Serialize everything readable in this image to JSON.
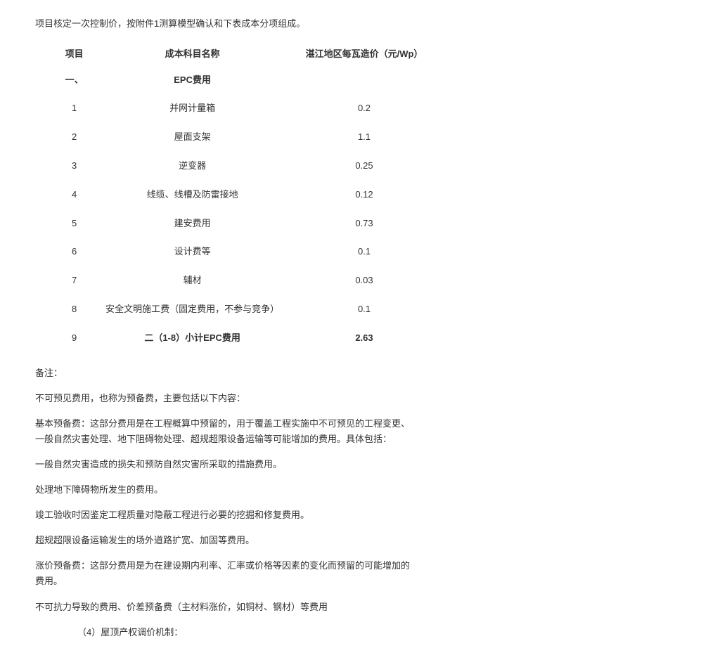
{
  "intro": "项目核定一次控制价，按附件1测算模型确认和下表成本分项组成。",
  "table": {
    "headers": {
      "item": "项目",
      "name": "成本科目名称",
      "price": "湛江地区每瓦造价（元/Wp）"
    },
    "section_header": {
      "item": "一、",
      "name": "EPC费用",
      "price": ""
    },
    "rows": [
      {
        "item": "1",
        "name": "并网计量箱",
        "price": "0.2"
      },
      {
        "item": "2",
        "name": "屋面支架",
        "price": "1.1"
      },
      {
        "item": "3",
        "name": "逆变器",
        "price": "0.25"
      },
      {
        "item": "4",
        "name": "线缆、线槽及防雷接地",
        "price": "0.12"
      },
      {
        "item": "5",
        "name": "建安费用",
        "price": "0.73"
      },
      {
        "item": "6",
        "name": "设计费等",
        "price": "0.1"
      },
      {
        "item": "7",
        "name": "辅材",
        "price": "0.03"
      },
      {
        "item": "8",
        "name": "安全文明施工费（固定费用，不参与竞争）",
        "price": "0.1"
      }
    ],
    "subtotal": {
      "item": "9",
      "name": "二（1-8）小计EPC费用",
      "price": "2.63"
    }
  },
  "notes": {
    "p1": "备注：",
    "p2": "不可预见费用，也称为预备费，主要包括以下内容：",
    "p3": "基本预备费：这部分费用是在工程概算中预留的，用于覆盖工程实施中不可预见的工程变更、一般自然灾害处理、地下阻碍物处理、超规超限设备运输等可能增加的费用。具体包括：",
    "p4": "一般自然灾害造成的损失和预防自然灾害所采取的措施费用。",
    "p5": "处理地下障碍物所发生的费用。",
    "p6": "竣工验收时因鉴定工程质量对隐蔽工程进行必要的挖掘和修复费用。",
    "p7": "超规超限设备运输发生的场外道路扩宽、加固等费用。",
    "p8": "涨价预备费：这部分费用是为在建设期内利率、汇率或价格等因素的变化而预留的可能增加的费用。",
    "p9": "不可抗力导致的费用、价差预备费（主材料涨价，如铜材、钢材）等费用",
    "p10": "（4）屋顶产权调价机制："
  }
}
